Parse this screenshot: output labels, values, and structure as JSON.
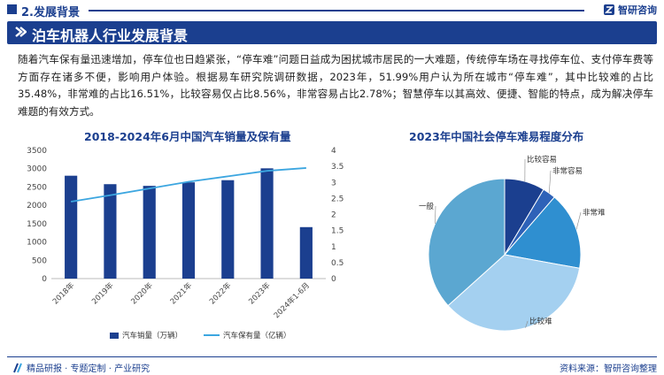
{
  "header": {
    "section_title": "2.发展背景",
    "brand": "智研咨询",
    "logo_icon": "zhiyan-logo-icon"
  },
  "banner": {
    "title": "泊车机器人行业发展背景"
  },
  "intro": {
    "text": "随着汽车保有量迅速增加，停车位也日趋紧张，“停车难”问题日益成为困扰城市居民的一大难题，传统停车场在寻找停车位、支付停车费等方面存在诸多不便，影响用户体验。根据易车研究院调研数据，2023年，51.99%用户认为所在城市“停车难”，其中比较难的占比35.48%，非常难的占比16.51%，比较容易仅占比8.56%，非常容易占比2.78%；智慧停车以其高效、便捷、智能的特点，成为解决停车难题的有效方式。"
  },
  "chart_data": [
    {
      "type": "bar",
      "title": "2018-2024年6月中国汽车销量及保有量",
      "categories": [
        "2018年",
        "2019年",
        "2020年",
        "2021年",
        "2022年",
        "2023年",
        "2024年1-6月"
      ],
      "y_ticks": [
        "0",
        "500",
        "1000",
        "1500",
        "2000",
        "2500",
        "3000",
        "3500"
      ],
      "y2_ticks": [
        "0",
        "0.5",
        "1",
        "1.5",
        "2",
        "2.5",
        "3",
        "3.5",
        "4"
      ],
      "ylim": [
        0,
        3500
      ],
      "y2lim": [
        0,
        4
      ],
      "series": [
        {
          "name": "汽车销量（万辆）",
          "type": "bar",
          "axis": "left",
          "color": "#1b3f8f",
          "values": [
            2808,
            2577,
            2531,
            2627,
            2686,
            3009,
            1405
          ]
        },
        {
          "name": "汽车保有量（亿辆）",
          "type": "line",
          "axis": "right",
          "color": "#3ca6e0",
          "values": [
            2.4,
            2.6,
            2.81,
            3.02,
            3.19,
            3.36,
            3.45
          ]
        }
      ],
      "legend": "bottom"
    },
    {
      "type": "pie",
      "title": "2023年中国社会停车难易程度分布",
      "slices": [
        {
          "label": "比较容易",
          "value": 8.56,
          "color": "#1b3f8f"
        },
        {
          "label": "非常容易",
          "value": 2.78,
          "color": "#2e62b8"
        },
        {
          "label": "非常难",
          "value": 16.51,
          "color": "#2f8fd0"
        },
        {
          "label": "比较难",
          "value": 35.48,
          "color": "#a4d0f0"
        },
        {
          "label": "一般",
          "value": 36.67,
          "color": "#5ba7d1"
        }
      ]
    }
  ],
  "footer": {
    "left_text": "精品研报 · 专题定制 · 产业研究",
    "right_text": "资料来源：智研咨询整理",
    "left_icon": "slash-logo-icon"
  }
}
